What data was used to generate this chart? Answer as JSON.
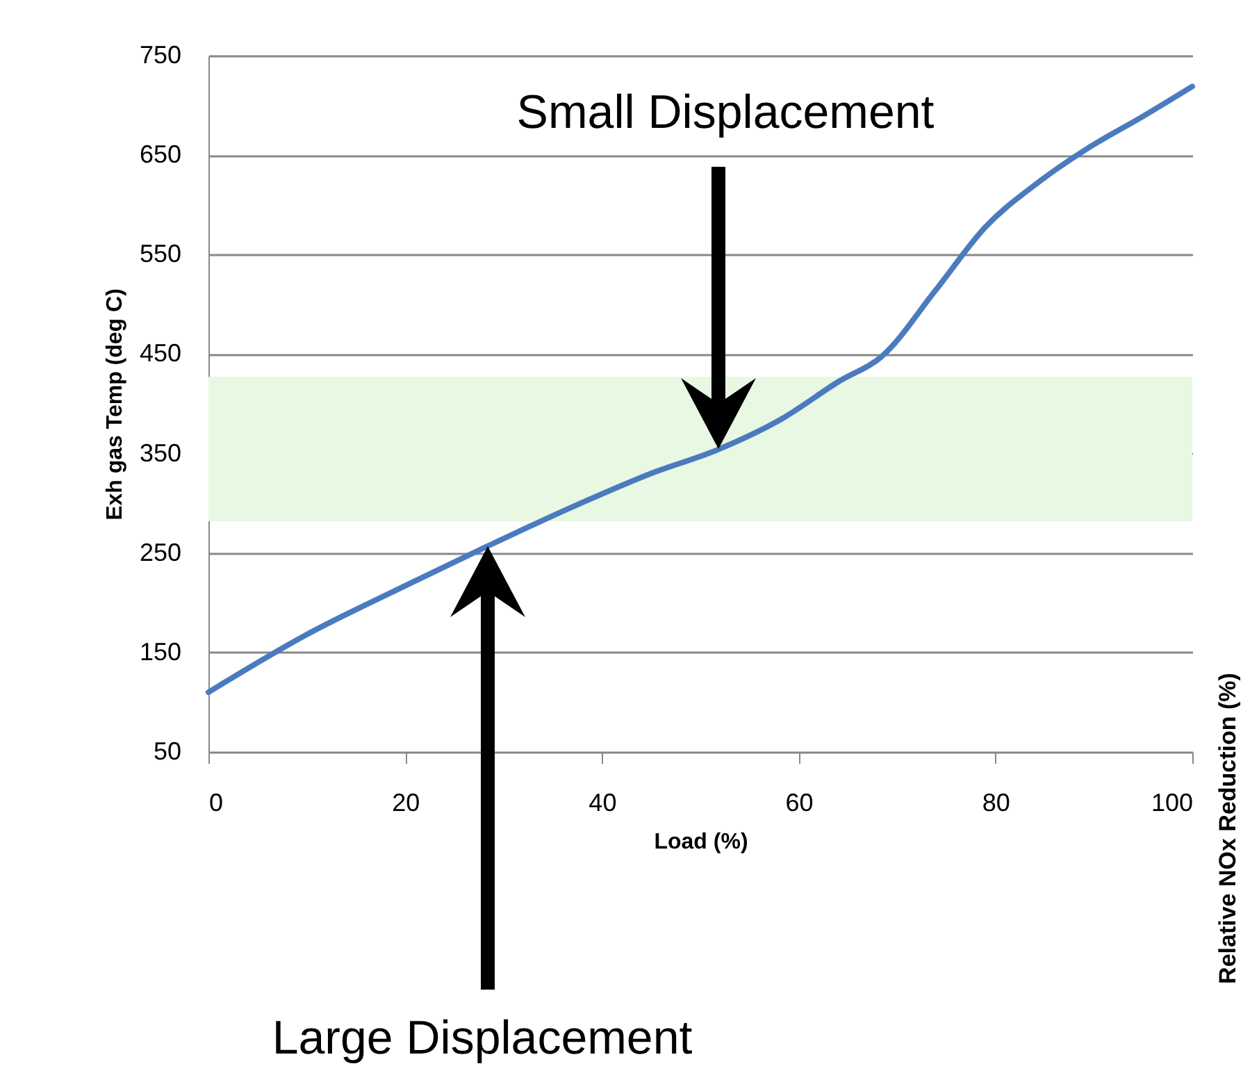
{
  "chart_data": {
    "type": "line",
    "xlabel": "Load (%)",
    "ylabel": "Exh gas Temp (deg C)",
    "x": [
      0,
      10,
      20,
      28.4,
      37.6,
      45,
      51.8,
      58.3,
      64,
      68.6,
      73.9,
      79,
      84,
      89.4,
      95,
      100
    ],
    "series": [
      {
        "color": "#4a7bbf",
        "values": [
          110,
          168,
          217,
          257,
          299,
          330,
          354,
          385,
          422,
          449,
          514,
          578,
          620,
          657,
          689,
          719
        ]
      }
    ],
    "xlim": [
      0,
      100
    ],
    "xticks": [
      0,
      20,
      40,
      60,
      80,
      100
    ],
    "ylim": [
      50,
      750
    ],
    "yticks": [
      50,
      150,
      250,
      350,
      450,
      550,
      650,
      750
    ],
    "grid": "y",
    "marker": "none",
    "line_style": "solid",
    "bands": [
      {
        "axis": "y",
        "from": 282,
        "to": 427,
        "color": "#e8f8e2"
      }
    ],
    "annotations": [
      "Small Displacement",
      "Large Displacement",
      "Relative NOx Reduction (%)"
    ]
  }
}
